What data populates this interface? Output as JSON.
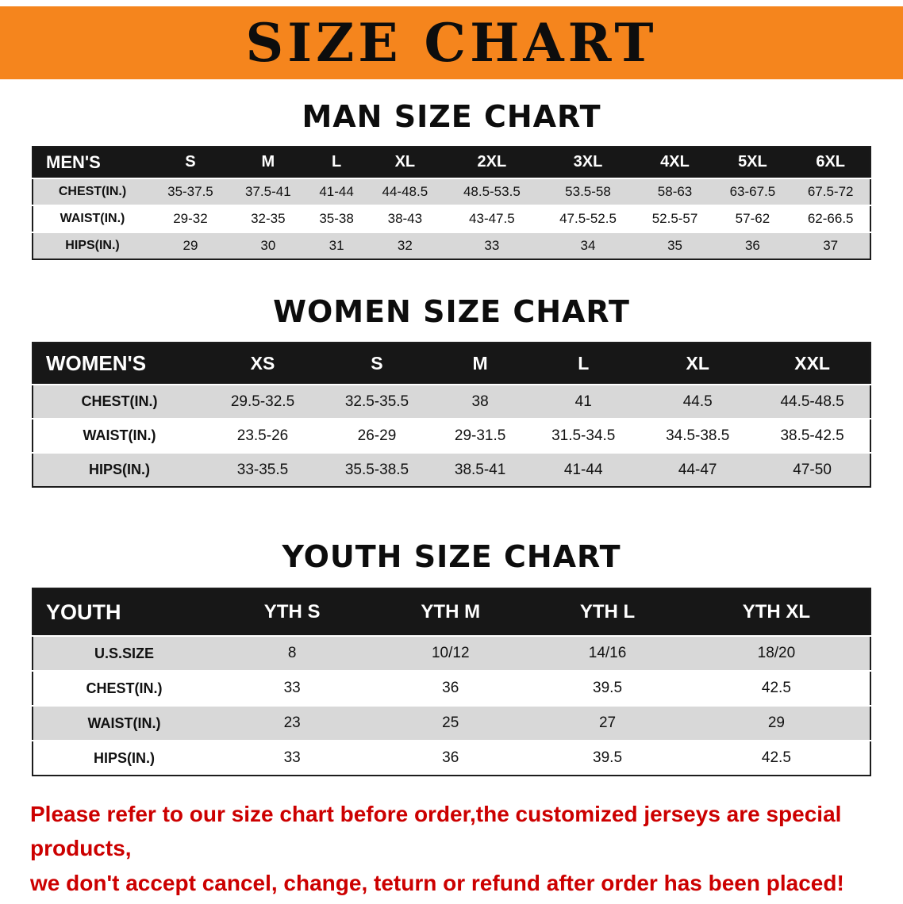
{
  "colors": {
    "banner_bg": "#f5851d",
    "table_header_bg": "#171717",
    "row_gray": "#d8d8d8",
    "accent_red": "#cc0000"
  },
  "banner": {
    "title": "SIZE CHART"
  },
  "sections": [
    {
      "heading": "MAN SIZE CHART",
      "header": [
        "MEN'S",
        "S",
        "M",
        "L",
        "XL",
        "2XL",
        "3XL",
        "4XL",
        "5XL",
        "6XL"
      ],
      "rows": [
        [
          "CHEST(IN.)",
          "35-37.5",
          "37.5-41",
          "41-44",
          "44-48.5",
          "48.5-53.5",
          "53.5-58",
          "58-63",
          "63-67.5",
          "67.5-72"
        ],
        [
          "WAIST(IN.)",
          "29-32",
          "32-35",
          "35-38",
          "38-43",
          "43-47.5",
          "47.5-52.5",
          "52.5-57",
          "57-62",
          "62-66.5"
        ],
        [
          "HIPS(IN.)",
          "29",
          "30",
          "31",
          "32",
          "33",
          "34",
          "35",
          "36",
          "37"
        ]
      ]
    },
    {
      "heading": "WOMEN SIZE CHART",
      "header": [
        "WOMEN'S",
        "XS",
        "S",
        "M",
        "L",
        "XL",
        "XXL"
      ],
      "rows": [
        [
          "CHEST(IN.)",
          "29.5-32.5",
          "32.5-35.5",
          "38",
          "41",
          "44.5",
          "44.5-48.5"
        ],
        [
          "WAIST(IN.)",
          "23.5-26",
          "26-29",
          "29-31.5",
          "31.5-34.5",
          "34.5-38.5",
          "38.5-42.5"
        ],
        [
          "HIPS(IN.)",
          "33-35.5",
          "35.5-38.5",
          "38.5-41",
          "41-44",
          "44-47",
          "47-50"
        ]
      ]
    },
    {
      "heading": "YOUTH SIZE CHART",
      "header": [
        "YOUTH",
        "YTH S",
        "YTH M",
        "YTH L",
        "YTH XL"
      ],
      "rows": [
        [
          "U.S.SIZE",
          "8",
          "10/12",
          "14/16",
          "18/20"
        ],
        [
          "CHEST(IN.)",
          "33",
          "36",
          "39.5",
          "42.5"
        ],
        [
          "WAIST(IN.)",
          "23",
          "25",
          "27",
          "29"
        ],
        [
          "HIPS(IN.)",
          "33",
          "36",
          "39.5",
          "42.5"
        ]
      ]
    }
  ],
  "footer": {
    "line1": "Please refer to our size chart before order,the customized jerseys are special products,",
    "line2": "we don't accept cancel, change, teturn or refund after order has been placed!"
  }
}
